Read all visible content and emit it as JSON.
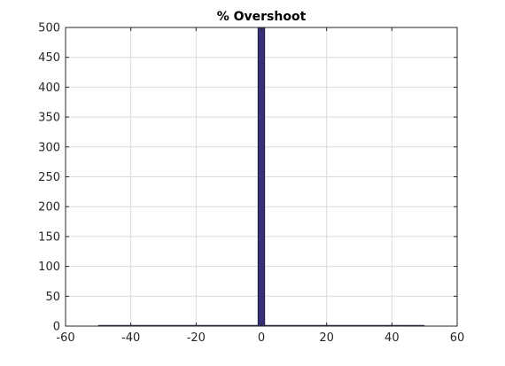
{
  "chart_data": {
    "type": "bar",
    "title": "% Overshoot",
    "xlabel": "",
    "ylabel": "",
    "xlim": [
      -60,
      60
    ],
    "ylim": [
      0,
      500
    ],
    "xticks": [
      -60,
      -40,
      -20,
      0,
      20,
      40,
      60
    ],
    "yticks": [
      0,
      50,
      100,
      150,
      200,
      250,
      300,
      350,
      400,
      450,
      500
    ],
    "grid": true,
    "bin_edges": [
      -50,
      -48,
      -46,
      -44,
      -42,
      -40,
      -38,
      -36,
      -34,
      -32,
      -30,
      -28,
      -26,
      -24,
      -22,
      -20,
      -18,
      -16,
      -14,
      -12,
      -10,
      -8,
      -6,
      -4,
      -2,
      -1,
      1,
      2,
      4,
      6,
      8,
      10,
      12,
      14,
      16,
      18,
      20,
      22,
      24,
      26,
      28,
      30,
      32,
      34,
      36,
      38,
      40,
      42,
      44,
      46,
      48,
      50
    ],
    "bars": [
      {
        "x0": -50,
        "x1": -1,
        "value": 0
      },
      {
        "x0": -1,
        "x1": 1,
        "value": 500
      },
      {
        "x0": 1,
        "x1": 50,
        "value": 0
      }
    ],
    "bar_color": "#38307a",
    "bar_edge_color": "#1e1e3c",
    "grid_color": "#dcdcdc",
    "axis_color": "#262626"
  }
}
